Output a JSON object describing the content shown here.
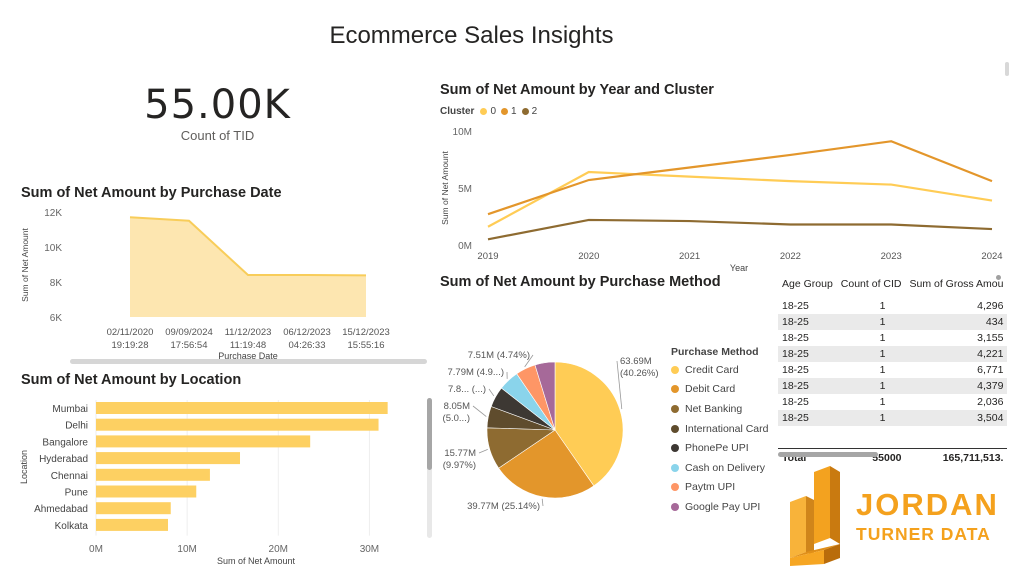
{
  "page": {
    "title": "Ecommerce Sales Insights"
  },
  "kpi": {
    "value": "55.00K",
    "label": "Count of TID"
  },
  "colors": {
    "c0": "#FFCC55",
    "c1": "#E3962B",
    "c2": "#8E6B31",
    "area": "#FDE6B0",
    "area_line": "#F8CD5A",
    "bar": "#FDD062"
  },
  "chart_data": [
    {
      "id": "purchase_date",
      "type": "area",
      "title": "Sum of Net Amount by Purchase Date",
      "xlabel": "Purchase Date",
      "ylabel": "Sum of Net Amount",
      "categories": [
        [
          "02/11/2020",
          "19:19:28"
        ],
        [
          "09/09/2024",
          "17:56:54"
        ],
        [
          "11/12/2023",
          "11:19:48"
        ],
        [
          "06/12/2023",
          "04:26:33"
        ],
        [
          "15/12/2023",
          "15:55:16"
        ]
      ],
      "values": [
        11700,
        11500,
        8400,
        8400,
        8380
      ],
      "ylim": [
        6000,
        12000
      ],
      "yticks": [
        {
          "v": 6000,
          "label": "6K"
        },
        {
          "v": 8000,
          "label": "8K"
        },
        {
          "v": 10000,
          "label": "10K"
        },
        {
          "v": 12000,
          "label": "12K"
        }
      ]
    },
    {
      "id": "location",
      "type": "bar",
      "orientation": "horizontal",
      "title": "Sum of Net Amount by Location",
      "xlabel": "Sum of Net Amount",
      "ylabel": "Location",
      "categories": [
        "Mumbai",
        "Delhi",
        "Bangalore",
        "Hyderabad",
        "Chennai",
        "Pune",
        "Ahmedabad",
        "Kolkata"
      ],
      "values": [
        32000000,
        31000000,
        23500000,
        15800000,
        12500000,
        11000000,
        8200000,
        7900000
      ],
      "xlim": [
        0,
        35000000
      ],
      "xticks": [
        {
          "v": 0,
          "label": "0M"
        },
        {
          "v": 10000000,
          "label": "10M"
        },
        {
          "v": 20000000,
          "label": "20M"
        },
        {
          "v": 30000000,
          "label": "30M"
        }
      ]
    },
    {
      "id": "year_cluster",
      "type": "line",
      "title": "Sum of Net Amount by Year and Cluster",
      "xlabel": "Year",
      "ylabel": "Sum of Net Amount",
      "legend_title": "Cluster",
      "x": [
        2019,
        2020,
        2021,
        2022,
        2023,
        2024
      ],
      "series": [
        {
          "name": "0",
          "color": "#FFCC55",
          "values": [
            1600000,
            6400000,
            6000000,
            5600000,
            5300000,
            3900000
          ]
        },
        {
          "name": "1",
          "color": "#E3962B",
          "values": [
            2700000,
            5700000,
            6800000,
            7900000,
            9100000,
            5600000
          ]
        },
        {
          "name": "2",
          "color": "#8E6B31",
          "values": [
            500000,
            2200000,
            2100000,
            1800000,
            1800000,
            1400000
          ]
        }
      ],
      "ylim": [
        0,
        10000000
      ],
      "yticks": [
        {
          "v": 0,
          "label": "0M"
        },
        {
          "v": 5000000,
          "label": "5M"
        },
        {
          "v": 10000000,
          "label": "10M"
        }
      ]
    },
    {
      "id": "purchase_method",
      "type": "pie",
      "title": "Sum of Net Amount by Purchase Method",
      "legend_title": "Purchase Method",
      "slices": [
        {
          "name": "Credit Card",
          "value": 63690000,
          "pct": 40.26,
          "color": "#FFCC55",
          "label": "63.69M",
          "label2": "(40.26%)"
        },
        {
          "name": "Debit Card",
          "value": 39770000,
          "pct": 25.14,
          "color": "#E3962B",
          "label": "39.77M (25.14%)",
          "label2": ""
        },
        {
          "name": "Net Banking",
          "value": 15770000,
          "pct": 9.97,
          "color": "#8E6B31",
          "label": "15.77M",
          "label2": "(9.97%)"
        },
        {
          "name": "International Card",
          "value": 8050000,
          "pct": 5.09,
          "color": "#5F4C2D",
          "label": "8.05M",
          "label2": "(5.0...)"
        },
        {
          "name": "PhonePe UPI",
          "value": 7800000,
          "pct": 4.93,
          "color": "#3D3833",
          "label": "7.8... (...)",
          "label2": ""
        },
        {
          "name": "Cash on Delivery",
          "value": 7790000,
          "pct": 4.92,
          "color": "#8AD4EB",
          "label": "7.79M (4.9...)",
          "label2": ""
        },
        {
          "name": "Paytm UPI",
          "value": 7510000,
          "pct": 4.74,
          "color": "#FE9666",
          "label": "7.51M (4.74%)",
          "label2": ""
        },
        {
          "name": "Google Pay UPI",
          "value": 7500000,
          "pct": 4.74,
          "color": "#A66999",
          "label": "",
          "label2": ""
        }
      ]
    }
  ],
  "table": {
    "headers": [
      "Age Group",
      "Count of CID",
      "Sum of Gross Amou"
    ],
    "rows": [
      [
        "18-25",
        "1",
        "4,296"
      ],
      [
        "18-25",
        "1",
        "434"
      ],
      [
        "18-25",
        "1",
        "3,155"
      ],
      [
        "18-25",
        "1",
        "4,221"
      ],
      [
        "18-25",
        "1",
        "6,771"
      ],
      [
        "18-25",
        "1",
        "4,379"
      ],
      [
        "18-25",
        "1",
        "2,036"
      ],
      [
        "18-25",
        "1",
        "3,504"
      ]
    ],
    "total": [
      "Total",
      "55000",
      "165,711,513."
    ]
  },
  "brand": {
    "line1": "JORDAN",
    "line2": "TURNER DATA"
  }
}
